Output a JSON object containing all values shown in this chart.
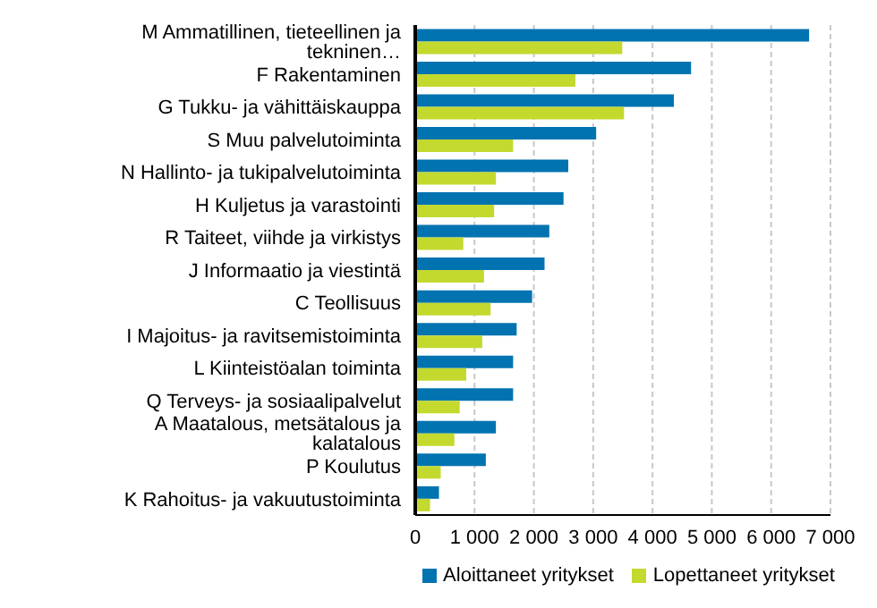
{
  "chart_data": {
    "type": "bar",
    "orientation": "horizontal",
    "categories": [
      "M Ammatillinen, tieteellinen ja tekninen…",
      "F Rakentaminen",
      "G Tukku- ja vähittäiskauppa",
      "S Muu palvelutoiminta",
      "N Hallinto- ja tukipalvelutoiminta",
      "H Kuljetus ja varastointi",
      "R Taiteet, viihde ja virkistys",
      "J Informaatio ja viestintä",
      "C Teollisuus",
      "I Majoitus- ja ravitsemistoiminta",
      "L Kiinteistöalan toiminta",
      "Q Terveys- ja sosiaalipalvelut",
      "A Maatalous, metsätalous ja kalatalous",
      "P Koulutus",
      "K Rahoitus- ja vakuutustoiminta"
    ],
    "series": [
      {
        "name": "Aloittaneet yritykset",
        "color": "#0073b0",
        "values": [
          6640,
          4650,
          4360,
          3050,
          2580,
          2500,
          2260,
          2180,
          1970,
          1710,
          1650,
          1650,
          1360,
          1190,
          400
        ]
      },
      {
        "name": "Lopettaneet yritykset",
        "color": "#c3d92e",
        "values": [
          3490,
          2700,
          3520,
          1650,
          1360,
          1330,
          810,
          1160,
          1270,
          1130,
          860,
          750,
          660,
          430,
          250
        ]
      }
    ],
    "xlim": [
      0,
      7000
    ],
    "xticks": [
      {
        "value": 0,
        "label": "0"
      },
      {
        "value": 1000,
        "label": "1 000"
      },
      {
        "value": 2000,
        "label": "2 000"
      },
      {
        "value": 3000,
        "label": "3 000"
      },
      {
        "value": 4000,
        "label": "4 000"
      },
      {
        "value": 5000,
        "label": "5 000"
      },
      {
        "value": 6000,
        "label": "6 000"
      },
      {
        "value": 7000,
        "label": "7 000"
      }
    ],
    "grid": "x",
    "legend": "bottom"
  }
}
